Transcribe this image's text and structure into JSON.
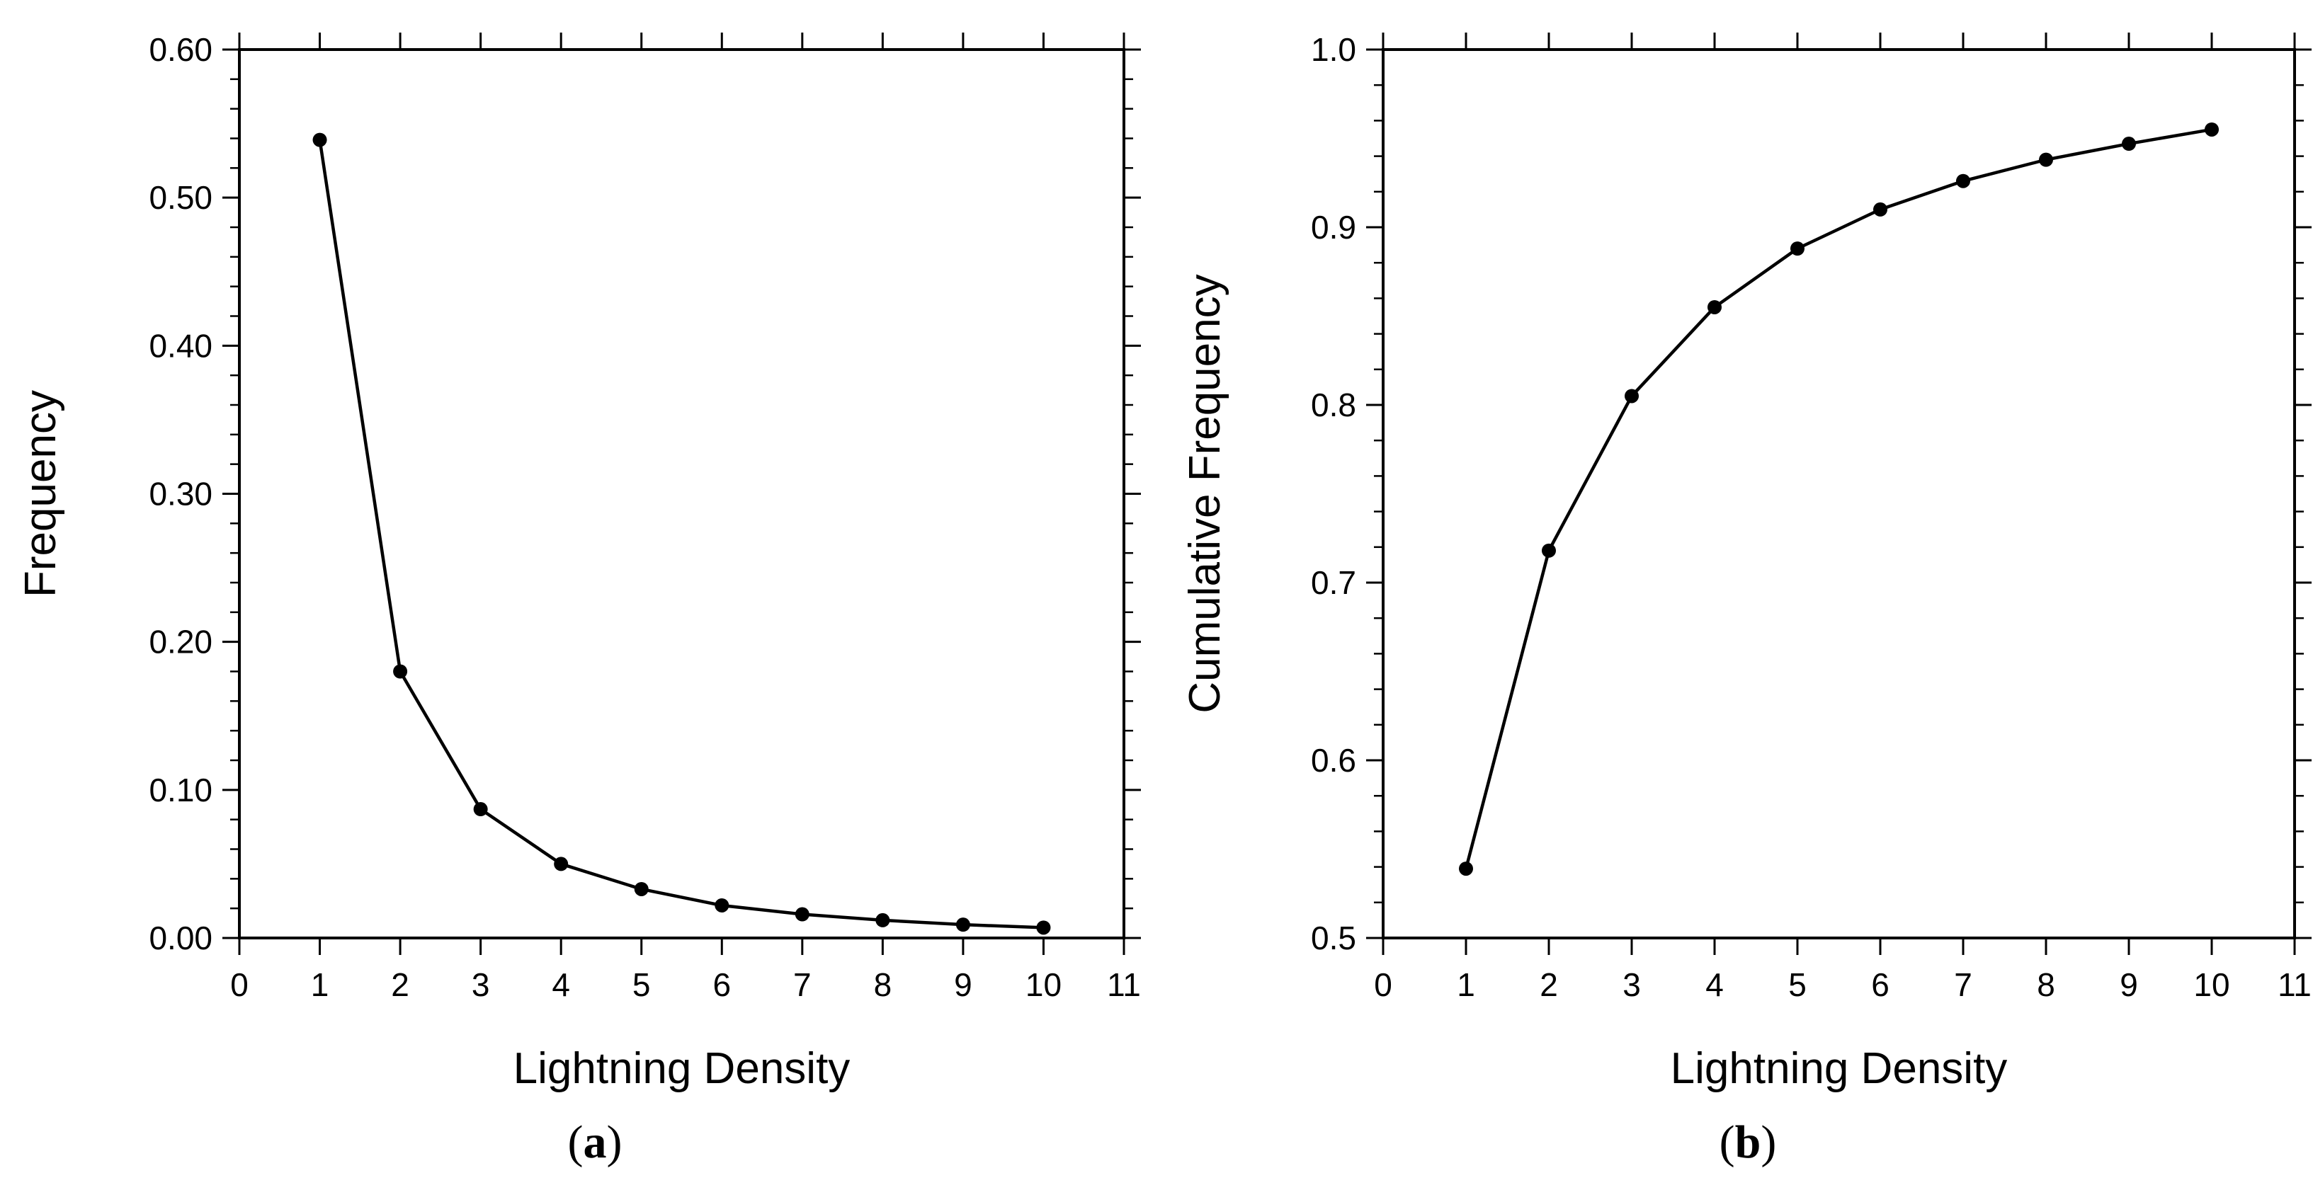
{
  "chart_data": [
    {
      "type": "line",
      "panel_label": "a",
      "xlabel": "Lightning Density",
      "ylabel": "Frequency",
      "xlim": [
        0,
        11
      ],
      "ylim": [
        0.0,
        0.6
      ],
      "xticks": [
        0,
        1,
        2,
        3,
        4,
        5,
        6,
        7,
        8,
        9,
        10,
        11
      ],
      "xtick_labels": [
        "0",
        "1",
        "2",
        "3",
        "4",
        "5",
        "6",
        "7",
        "8",
        "9",
        "10",
        "11"
      ],
      "yticks": [
        0.0,
        0.1,
        0.2,
        0.3,
        0.4,
        0.5,
        0.6
      ],
      "ytick_labels": [
        "0.00",
        "0.10",
        "0.20",
        "0.30",
        "0.40",
        "0.50",
        "0.60"
      ],
      "minor_y_per_major": 5,
      "series": [
        {
          "name": "Frequency",
          "x": [
            1,
            2,
            3,
            4,
            5,
            6,
            7,
            8,
            9,
            10
          ],
          "y": [
            0.539,
            0.18,
            0.087,
            0.05,
            0.033,
            0.022,
            0.016,
            0.012,
            0.009,
            0.007
          ]
        }
      ]
    },
    {
      "type": "line",
      "panel_label": "b",
      "xlabel": "Lightning Density",
      "ylabel": "Cumulative Frequency",
      "xlim": [
        0,
        11
      ],
      "ylim": [
        0.5,
        1.0
      ],
      "xticks": [
        0,
        1,
        2,
        3,
        4,
        5,
        6,
        7,
        8,
        9,
        10,
        11
      ],
      "xtick_labels": [
        "0",
        "1",
        "2",
        "3",
        "4",
        "5",
        "6",
        "7",
        "8",
        "9",
        "10",
        "11"
      ],
      "yticks": [
        0.5,
        0.6,
        0.7,
        0.8,
        0.9,
        1.0
      ],
      "ytick_labels": [
        "0.5",
        "0.6",
        "0.7",
        "0.8",
        "0.9",
        "1.0"
      ],
      "minor_y_per_major": 5,
      "series": [
        {
          "name": "Cumulative Frequency",
          "x": [
            1,
            2,
            3,
            4,
            5,
            6,
            7,
            8,
            9,
            10
          ],
          "y": [
            0.539,
            0.718,
            0.805,
            0.855,
            0.888,
            0.91,
            0.926,
            0.938,
            0.947,
            0.955
          ]
        }
      ]
    }
  ]
}
